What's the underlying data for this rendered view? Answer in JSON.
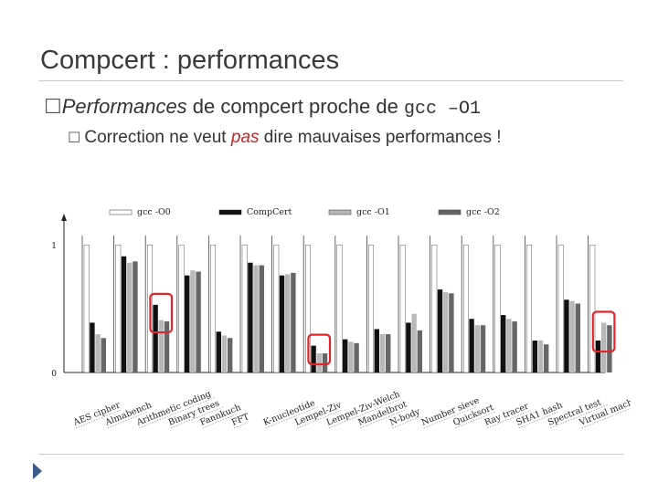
{
  "slide": {
    "title": "Compcert : performances",
    "bullet1": {
      "marker": "☐",
      "text_italic": "Performances",
      "text_mid": " de compcert proche de ",
      "text_code": "gcc –O1"
    },
    "bullet2": {
      "marker": "☐",
      "text_before": "Correction ne veut ",
      "text_italic": "pas",
      "text_after": " dire mauvaises performances !"
    },
    "nav_icon": "triangle-right-icon"
  },
  "colors": {
    "highlight": "#e0262a",
    "series": [
      "#ffffff",
      "#111111",
      "#b8b8b8",
      "#666666"
    ],
    "accent_text": "#c0282a"
  },
  "chart_data": {
    "type": "bar",
    "categories": [
      "AES cipher",
      "Almabench",
      "Arithmetic coding",
      "Binary trees",
      "Fannkuch",
      "FFT",
      "K-nucleotide",
      "Lempel-Ziv",
      "Lempel-Ziv-Welch",
      "Mandelbrot",
      "N-body",
      "Number sieve",
      "Quicksort",
      "Ray tracer",
      "SHA1 hash",
      "Spectral test",
      "Virtual machine"
    ],
    "series": [
      {
        "name": "gcc -O0",
        "values": [
          1.0,
          1.0,
          1.0,
          1.0,
          1.0,
          1.0,
          1.0,
          1.0,
          1.0,
          1.0,
          1.0,
          1.0,
          1.0,
          1.0,
          1.0,
          1.0,
          1.0
        ]
      },
      {
        "name": "CompCert",
        "values": [
          0.39,
          0.91,
          0.53,
          0.76,
          0.32,
          0.86,
          0.76,
          0.21,
          0.26,
          0.34,
          0.39,
          0.65,
          0.42,
          0.45,
          0.25,
          0.57,
          0.25
        ]
      },
      {
        "name": "gcc -O1",
        "values": [
          0.3,
          0.86,
          0.41,
          0.8,
          0.29,
          0.84,
          0.77,
          0.15,
          0.24,
          0.3,
          0.46,
          0.63,
          0.37,
          0.42,
          0.25,
          0.56,
          0.39
        ]
      },
      {
        "name": "gcc -O2",
        "values": [
          0.27,
          0.87,
          0.4,
          0.79,
          0.27,
          0.84,
          0.78,
          0.15,
          0.23,
          0.3,
          0.33,
          0.62,
          0.37,
          0.4,
          0.22,
          0.54,
          0.37
        ]
      }
    ],
    "ylim": [
      0,
      1.18
    ],
    "yticks": [
      "0",
      "1"
    ],
    "ytick_values": [
      0,
      1
    ],
    "legend_position": "top",
    "grid": "vertical separators",
    "highlighted_categories": [
      "Arithmetic coding",
      "Lempel-Ziv",
      "Virtual machine"
    ]
  }
}
